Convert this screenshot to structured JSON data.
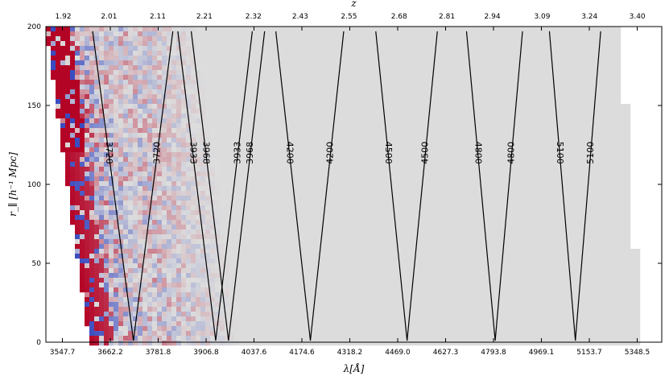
{
  "chart_data": {
    "type": "heatmap",
    "title": "",
    "xlabel": "λ[Å]",
    "ylabel": "r_∥ [h⁻¹ Mpc]",
    "top_axis_label": "z",
    "xlim": [
      3520,
      5460
    ],
    "ylim": [
      0,
      200
    ],
    "x_ticks": [
      "3547.7",
      "3662.2",
      "3781.8",
      "3906.8",
      "4037.6",
      "4174.6",
      "4318.2",
      "4469.0",
      "4627.3",
      "4793.8",
      "4969.1",
      "5153.7",
      "5348.5"
    ],
    "x_tick_values": [
      3547.7,
      3662.2,
      3781.8,
      3906.8,
      4037.6,
      4174.6,
      4318.2,
      4469.0,
      4627.3,
      4793.8,
      4969.1,
      5153.7,
      5348.5
    ],
    "y_ticks": [
      "0",
      "50",
      "100",
      "150",
      "200"
    ],
    "y_tick_values": [
      0,
      50,
      100,
      150,
      200
    ],
    "z_ticks": [
      "1.92",
      "2.01",
      "2.11",
      "2.21",
      "2.32",
      "2.43",
      "2.55",
      "2.68",
      "2.81",
      "2.94",
      "3.09",
      "3.24",
      "3.40"
    ],
    "rest_frame_lya": 1215.67,
    "grid": false,
    "heatmap": {
      "colormap": "coolwarm",
      "masked_color": "#dcdcdc",
      "lambda_range": [
        3547.7,
        5380
      ],
      "rpar_range": [
        0,
        200
      ]
    },
    "v_lines": [
      {
        "label": "3720",
        "vertex": 3720,
        "left_top": 3620,
        "right_top": 3820
      },
      {
        "label": "3933",
        "vertex": 3933,
        "left_top": 3833,
        "right_top": 4033
      },
      {
        "label": "3968",
        "vertex": 3968,
        "left_top": 3868,
        "right_top": 4068
      },
      {
        "label": "4200",
        "vertex": 4200,
        "left_top": 4100,
        "right_top": 4300
      },
      {
        "label": "4500",
        "vertex": 4500,
        "left_top": 4400,
        "right_top": 4600
      },
      {
        "label": "4800",
        "vertex": 4800,
        "left_top": 4700,
        "right_top": 4900
      },
      {
        "label": "5100",
        "vertex": 5100,
        "left_top": 5000,
        "right_top": 5200
      }
    ],
    "line_label_order": [
      "3720",
      "3720",
      "3933",
      "3968",
      "3933",
      "3968",
      "4200",
      "4200",
      "4500",
      "4500",
      "4800",
      "4800",
      "5100",
      "5100"
    ]
  }
}
